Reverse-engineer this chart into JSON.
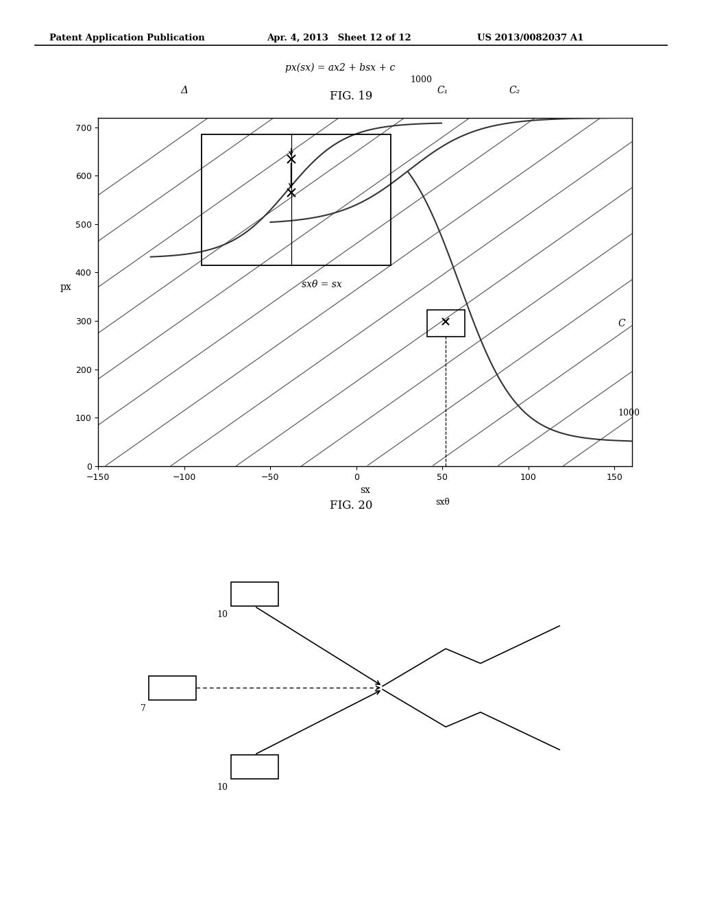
{
  "header_left": "Patent Application Publication",
  "header_mid": "Apr. 4, 2013   Sheet 12 of 12",
  "header_right": "US 2013/0082037 A1",
  "fig19_title": "FIG. 19",
  "fig20_title": "FIG. 20",
  "fig19_formula": "px(sx) = ax2 + bsx + c",
  "fig19_xlabel": "sx",
  "fig19_ylabel": "px",
  "fig19_xlabel2": "sxθ",
  "fig19_xlim": [
    -150,
    160
  ],
  "fig19_ylim": [
    0,
    720
  ],
  "fig19_xticks": [
    -150,
    -100,
    -50,
    0,
    50,
    100,
    150
  ],
  "fig19_yticks": [
    0,
    100,
    200,
    300,
    400,
    500,
    600,
    700
  ],
  "fig19_label_1000_top": "1000",
  "fig19_label_C1": "C₁",
  "fig19_label_C2": "C₂",
  "fig19_label_C": "C",
  "fig19_label_delta": "Δ",
  "fig19_label_sx0": "sxθ = sx",
  "background_color": "#ffffff",
  "line_color": "#444444"
}
